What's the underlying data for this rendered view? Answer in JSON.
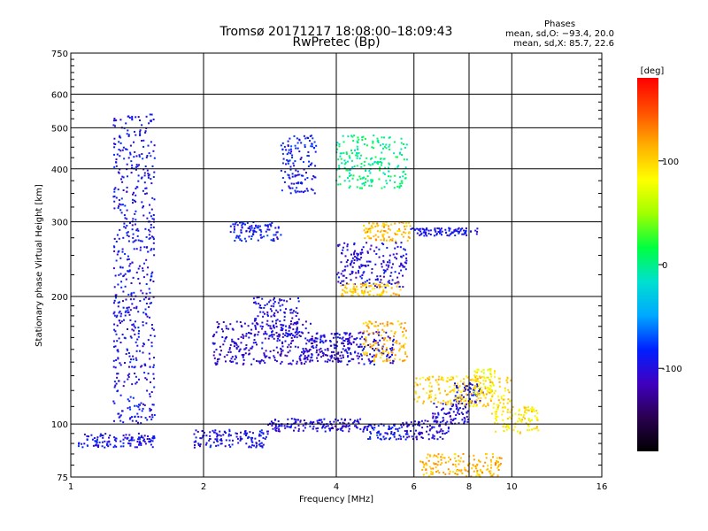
{
  "header": {
    "title_line1": "Tromsø 20171217 18:08:00–18:09:43",
    "title_line2": "RwPretec (Bp)",
    "stats_title": "Phases",
    "stats_line1": "mean, sd,O: −93.4, 20.0",
    "stats_line2": "mean, sd,X:  85.7, 22.6"
  },
  "chart_data": {
    "type": "scatter",
    "title": "Tromsø 20171217 18:08:00–18:09:43",
    "subtitle": "RwPretec (Bp)",
    "xlabel": "Frequency [MHz]",
    "ylabel": "Stationary phase Virtual Height [km]",
    "x_scale": "log",
    "y_scale": "log",
    "xlim": [
      1,
      16
    ],
    "ylim": [
      75,
      750
    ],
    "x_ticks": [
      1,
      2,
      4,
      6,
      8,
      10,
      16
    ],
    "y_ticks": [
      75,
      100,
      200,
      300,
      400,
      500,
      600,
      750
    ],
    "grid": true,
    "colorbar": {
      "label": "[deg]",
      "range": [
        -180,
        180
      ],
      "ticks": [
        100,
        0,
        -100
      ],
      "colors": [
        "#000000",
        "#2a0050",
        "#4000c0",
        "#0020ff",
        "#00a8ff",
        "#00e0d0",
        "#00ff40",
        "#a0ff00",
        "#ffff00",
        "#ffb000",
        "#ff5000",
        "#ff0000"
      ]
    },
    "clusters": [
      {
        "x": [
          1.04,
          1.55
        ],
        "y": [
          88,
          95
        ],
        "phase": -95
      },
      {
        "x": [
          1.9,
          2.8
        ],
        "y": [
          88,
          97
        ],
        "phase": -95
      },
      {
        "x": [
          2.8,
          4.6
        ],
        "y": [
          96,
          103
        ],
        "phase": -100
      },
      {
        "x": [
          4.6,
          5.6
        ],
        "y": [
          92,
          100
        ],
        "phase": -90
      },
      {
        "x": [
          5.6,
          7.2
        ],
        "y": [
          92,
          102
        ],
        "phase": -100
      },
      {
        "x": [
          6.6,
          8.0
        ],
        "y": [
          100,
          112
        ],
        "phase": -100
      },
      {
        "x": [
          7.4,
          8.6
        ],
        "y": [
          112,
          125
        ],
        "phase": -95
      },
      {
        "x": [
          8.2,
          9.2
        ],
        "y": [
          118,
          135
        ],
        "phase": 80
      },
      {
        "x": [
          9.0,
          11.5
        ],
        "y": [
          95,
          110
        ],
        "phase": 90
      },
      {
        "x": [
          6.0,
          10.0
        ],
        "y": [
          110,
          130
        ],
        "phase": 100
      },
      {
        "x": [
          6.2,
          9.5
        ],
        "y": [
          75,
          85
        ],
        "phase": 110
      },
      {
        "x": [
          2.1,
          3.5
        ],
        "y": [
          138,
          175
        ],
        "phase": -105
      },
      {
        "x": [
          2.6,
          3.3
        ],
        "y": [
          160,
          200
        ],
        "phase": -100
      },
      {
        "x": [
          3.3,
          4.2
        ],
        "y": [
          140,
          150
        ],
        "phase": -110
      },
      {
        "x": [
          3.5,
          4.3
        ],
        "y": [
          150,
          165
        ],
        "phase": -100
      },
      {
        "x": [
          4.2,
          5.4
        ],
        "y": [
          138,
          165
        ],
        "phase": -100
      },
      {
        "x": [
          4.6,
          5.8
        ],
        "y": [
          140,
          175
        ],
        "phase": 110
      },
      {
        "x": [
          4.0,
          5.8
        ],
        "y": [
          210,
          270
        ],
        "phase": -100
      },
      {
        "x": [
          4.1,
          5.6
        ],
        "y": [
          200,
          215
        ],
        "phase": 105
      },
      {
        "x": [
          4.6,
          5.9
        ],
        "y": [
          270,
          300
        ],
        "phase": 110
      },
      {
        "x": [
          5.9,
          8.4
        ],
        "y": [
          278,
          290
        ],
        "phase": -95
      },
      {
        "x": [
          3.0,
          3.6
        ],
        "y": [
          350,
          480
        ],
        "phase": -90
      },
      {
        "x": [
          1.25,
          1.55
        ],
        "y": [
          100,
          540
        ],
        "phase": -95
      },
      {
        "x": [
          2.3,
          3.0
        ],
        "y": [
          270,
          300
        ],
        "phase": -90
      },
      {
        "x": [
          4.0,
          5.8
        ],
        "y": [
          360,
          480
        ],
        "phase": 0
      }
    ]
  }
}
